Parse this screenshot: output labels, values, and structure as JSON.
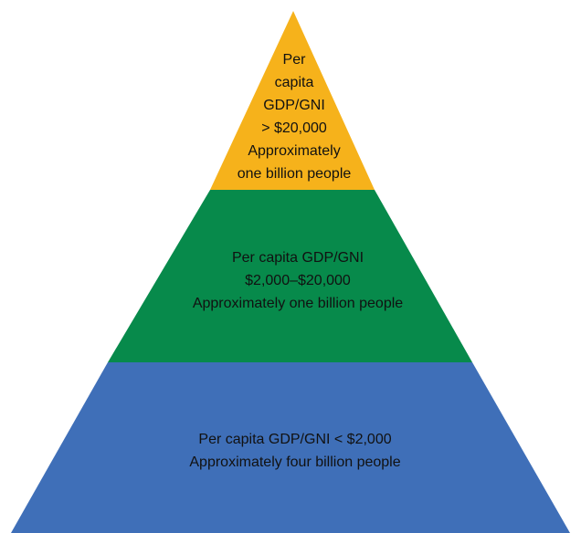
{
  "colors": {
    "top_tier": "#F6B21B",
    "middle_tier": "#078A4B",
    "bottom_tier": "#3F6FB8",
    "background": "#FFFFFF",
    "text": "#111111"
  },
  "pyramid": {
    "tiers": [
      {
        "name": "top",
        "lines": [
          "Per",
          "capita",
          "GDP/GNI",
          "> $20,000",
          "Approximately",
          "one billion people"
        ]
      },
      {
        "name": "middle",
        "lines": [
          "Per capita GDP/GNI",
          "$2,000–$20,000",
          "Approximately one billion people"
        ]
      },
      {
        "name": "bottom",
        "lines": [
          "Per capita GDP/GNI < $2,000",
          "Approximately four billion people"
        ]
      }
    ]
  }
}
